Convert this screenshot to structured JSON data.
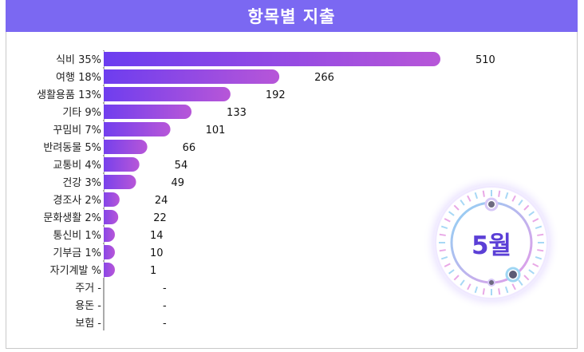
{
  "title": "항목별 지출",
  "badge": {
    "month": "5월"
  },
  "colors": {
    "title_bg": "#7b68f2",
    "bar_start": "#6a3cf0",
    "bar_end": "#b756d8"
  },
  "chart_data": {
    "type": "bar",
    "orientation": "horizontal",
    "title": "항목별 지출",
    "categories": [
      "식비",
      "여행",
      "생활용품",
      "기타",
      "꾸밈비",
      "반려동물",
      "교통비",
      "건강",
      "경조사",
      "문화생활",
      "통신비",
      "기부금",
      "자기계발",
      "주거",
      "용돈",
      "보험"
    ],
    "percent_labels": [
      "35%",
      "18%",
      "13%",
      "9%",
      "7%",
      "5%",
      "4%",
      "3%",
      "2%",
      "2%",
      "1%",
      "1%",
      "%",
      "-",
      "-",
      "-"
    ],
    "values": [
      510,
      266,
      192,
      133,
      101,
      66,
      54,
      49,
      24,
      22,
      14,
      10,
      1,
      null,
      null,
      null
    ],
    "value_labels": [
      "510",
      "266",
      "192",
      "133",
      "101",
      "66",
      "54",
      "49",
      "24",
      "22",
      "14",
      "10",
      "1",
      "-",
      "-",
      "-"
    ],
    "xlim": [
      0,
      510
    ],
    "grid": false,
    "legend": "none"
  }
}
